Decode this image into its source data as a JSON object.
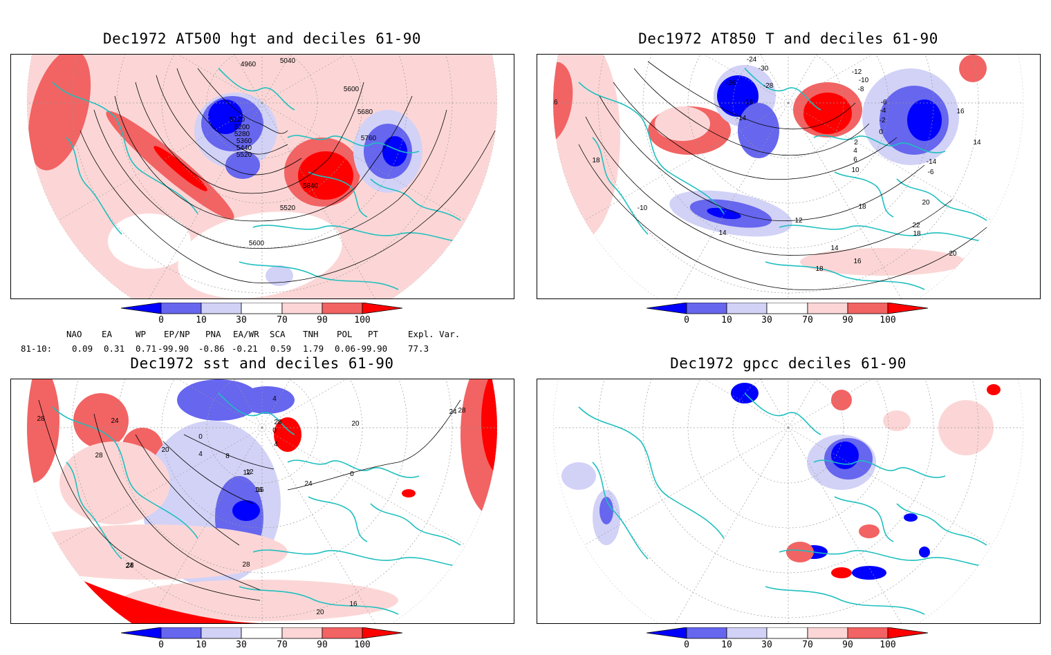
{
  "panels": [
    {
      "id": "p1",
      "title": "Dec1972 AT500 hgt and deciles 61-90",
      "contour_labels": [
        "4960",
        "5040",
        "5120",
        "5200",
        "5280",
        "5360",
        "5440",
        "5520",
        "5600",
        "5680",
        "5760",
        "5840",
        "5520",
        "5600"
      ]
    },
    {
      "id": "p2",
      "title": "Dec1972 AT850 T and deciles 61-90",
      "contour_labels": [
        "-24",
        "-30",
        "-26",
        "-28",
        "-16",
        "-14",
        "-12",
        "-10",
        "-8",
        "-6",
        "-4",
        "-2",
        "0",
        "2",
        "4",
        "6",
        "10",
        "12",
        "14",
        "16",
        "18",
        "20",
        "22",
        "18",
        "20",
        "18",
        "16",
        "14",
        "16",
        "18",
        "14",
        "-14",
        "-10",
        "-6"
      ]
    },
    {
      "id": "p3",
      "title": "Dec1972 sst and deciles 61-90",
      "contour_labels": [
        "28",
        "24",
        "28",
        "20",
        "0",
        "4",
        "8",
        "12",
        "16",
        "20",
        "24",
        "28",
        "28",
        "16",
        "20",
        "24",
        "28",
        "0",
        "4",
        "4",
        "0",
        "24",
        "28",
        "12",
        "16"
      ]
    },
    {
      "id": "p4",
      "title": "Dec1972 gpcc deciles 61-90",
      "contour_labels": []
    }
  ],
  "colorbar": {
    "labels": [
      "0",
      "10",
      "30",
      "70",
      "90",
      "100"
    ],
    "colors": {
      "c0": "#0000ff",
      "c10": "#6666ee",
      "c30": "#d2d2f7",
      "mid": "#ffffff",
      "c70": "#fcd6d6",
      "c90": "#f26363",
      "c100": "#ff0000"
    }
  },
  "indices": {
    "headers": [
      "NAO",
      "EA",
      "WP",
      "EP/NP",
      "PNA",
      "EA/WR",
      "SCA",
      "TNH",
      "POL",
      "PT",
      "Expl. Var."
    ],
    "row_label": "81-10:",
    "values": [
      "0.09",
      "0.31",
      "0.71",
      "-99.90",
      "-0.86",
      "-0.21",
      "0.59",
      "1.79",
      "0.06",
      "-99.90",
      "77.3"
    ]
  },
  "map_colors": {
    "coast": "#1fbfbf",
    "grid": "#999999",
    "contour": "#000000"
  }
}
